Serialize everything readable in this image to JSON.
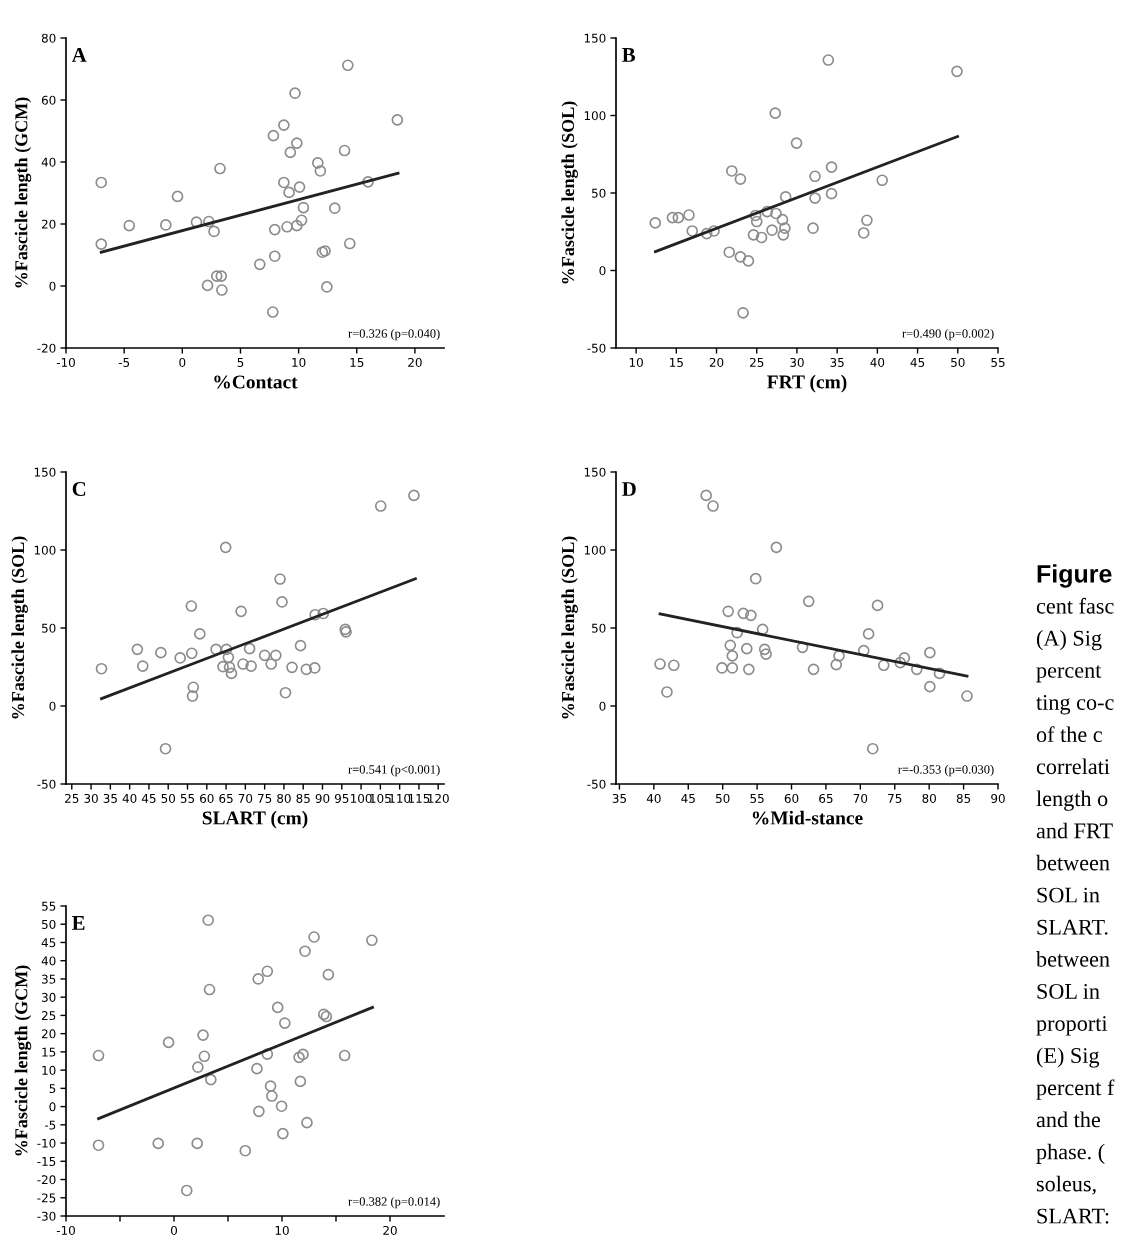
{
  "chart_data": [
    {
      "type": "scatter",
      "xlabel": "%Contact",
      "ylabel": "%Fascicle length (GCM)",
      "xlim": [
        -10,
        22.5
      ],
      "xticks": [
        -10,
        -5,
        0,
        5,
        10,
        15,
        20
      ],
      "ylim": [
        -20,
        80
      ],
      "yticks": [
        -20,
        0,
        20,
        40,
        60,
        80
      ],
      "grid": false,
      "annotations": [
        "A",
        "r=0.326 (p=0.040)"
      ],
      "series": [
        {
          "type": "scatter",
          "marker": "circle",
          "color": "#8c8c8c",
          "x": [
            -6.97,
            -6.97,
            -4.56,
            -1.42,
            -0.41,
            1.22,
            2.28,
            2.73,
            3.24,
            2.17,
            2.96,
            3.35,
            3.4,
            6.66,
            7.78,
            7.83,
            7.95,
            7.95,
            8.73,
            8.73,
            9.18,
            9.01,
            9.29,
            9.69,
            9.85,
            9.85,
            10.08,
            10.25,
            10.41,
            11.65,
            11.87,
            12.04,
            12.27,
            12.43,
            13.11,
            13.95,
            14.23,
            14.4,
            15.97,
            18.49
          ],
          "values": [
            33.4,
            13.5,
            19.5,
            19.7,
            28.9,
            20.6,
            20.8,
            17.6,
            37.9,
            0.2,
            3.2,
            3.2,
            -1.3,
            7.0,
            -8.4,
            48.5,
            18.2,
            9.6,
            51.9,
            33.4,
            30.2,
            19.1,
            43.1,
            62.2,
            46.1,
            19.5,
            31.9,
            21.2,
            25.3,
            39.7,
            37.1,
            10.9,
            11.3,
            -0.3,
            25.1,
            43.7,
            71.2,
            13.7,
            33.6,
            53.6
          ]
        },
        {
          "type": "line",
          "color": "#222222",
          "x": [
            -6.97,
            18.55
          ],
          "values": [
            10.9,
            36.4
          ]
        }
      ]
    },
    {
      "type": "scatter",
      "xlabel": "FRT (cm)",
      "ylabel": "%Fascicle length (SOL)",
      "xlim": [
        7.5,
        55
      ],
      "xticks": [
        10,
        15,
        20,
        25,
        30,
        35,
        40,
        45,
        50,
        55
      ],
      "ylim": [
        -50,
        150
      ],
      "yticks": [
        -50,
        0,
        50,
        100,
        150
      ],
      "grid": false,
      "annotations": [
        "B",
        "r=0.490 (p=0.002)"
      ],
      "series": [
        {
          "type": "scatter",
          "marker": "circle",
          "color": "#8c8c8c",
          "x": [
            12.38,
            14.52,
            15.25,
            16.57,
            16.98,
            18.78,
            19.69,
            21.58,
            21.9,
            22.97,
            22.97,
            23.96,
            23.3,
            24.6,
            24.86,
            25.0,
            25.6,
            26.3,
            26.9,
            27.3,
            27.4,
            28.2,
            28.3,
            28.5,
            28.6,
            29.95,
            32.0,
            32.25,
            32.25,
            33.9,
            34.3,
            34.3,
            38.3,
            38.7,
            40.6,
            49.9
          ],
          "values": [
            30.7,
            34.1,
            34.1,
            35.8,
            25.5,
            23.8,
            25.5,
            11.8,
            64.2,
            59.0,
            8.8,
            6.2,
            -27.3,
            23.0,
            35.5,
            31.6,
            21.3,
            38.0,
            26.0,
            101.5,
            36.8,
            32.8,
            23.0,
            27.3,
            47.5,
            82.2,
            27.3,
            60.8,
            46.7,
            135.8,
            66.7,
            49.6,
            24.2,
            32.4,
            58.2,
            128.5
          ]
        },
        {
          "type": "line",
          "color": "#222222",
          "x": [
            12.4,
            49.98
          ],
          "values": [
            12.2,
            86.5
          ]
        }
      ]
    },
    {
      "type": "scatter",
      "xlabel": "SLART (cm)",
      "ylabel": "%Fascicle length (SOL)",
      "xlim": [
        23.5,
        121.5
      ],
      "xticks": [
        25,
        30,
        35,
        40,
        45,
        50,
        55,
        60,
        65,
        70,
        75,
        80,
        85,
        90,
        95,
        100,
        105,
        110,
        115,
        120
      ],
      "ylim": [
        -50,
        150
      ],
      "yticks": [
        -50,
        0,
        50,
        100,
        150
      ],
      "grid": false,
      "annotations": [
        "C",
        "r=0.541 (p<0.001)"
      ],
      "series": [
        {
          "type": "scatter",
          "marker": "circle",
          "color": "#8c8c8c",
          "x": [
            32.7,
            42.0,
            43.4,
            48.1,
            49.3,
            53.1,
            56.0,
            56.1,
            56.5,
            56.3,
            58.2,
            62.4,
            64.2,
            64.9,
            65.1,
            65.6,
            65.9,
            66.4,
            68.9,
            69.4,
            71.1,
            71.5,
            75.0,
            76.7,
            77.9,
            79.0,
            79.5,
            80.4,
            82.1,
            84.3,
            85.8,
            88.0,
            88.1,
            90.2,
            95.9,
            96.1,
            105.1,
            113.7
          ],
          "values": [
            23.9,
            36.3,
            25.6,
            34.2,
            -27.4,
            30.8,
            64.1,
            33.8,
            12.0,
            6.4,
            46.2,
            36.3,
            25.2,
            101.7,
            36.3,
            31.2,
            24.8,
            20.9,
            60.7,
            26.9,
            36.8,
            25.6,
            32.5,
            26.9,
            32.5,
            81.4,
            66.7,
            8.5,
            24.8,
            38.7,
            23.5,
            24.4,
            58.5,
            59.3,
            49.1,
            47.5,
            128.2,
            135.0
          ]
        },
        {
          "type": "line",
          "color": "#222222",
          "x": [
            32.7,
            114.1
          ],
          "values": [
            4.7,
            81.6
          ]
        }
      ]
    },
    {
      "type": "scatter",
      "xlabel": "%Mid-stance",
      "ylabel": "%Fascicle length (SOL)",
      "xlim": [
        34.5,
        90
      ],
      "xticks": [
        35,
        40,
        45,
        50,
        55,
        60,
        65,
        70,
        75,
        80,
        85,
        90
      ],
      "ylim": [
        -50,
        150
      ],
      "yticks": [
        -50,
        0,
        50,
        100,
        150
      ],
      "grid": false,
      "annotations": [
        "D",
        "r=-0.353 (p=0.030)"
      ],
      "series": [
        {
          "type": "scatter",
          "marker": "circle",
          "color": "#8c8c8c",
          "x": [
            40.9,
            41.9,
            42.9,
            47.6,
            48.6,
            49.9,
            50.8,
            51.1,
            51.4,
            51.4,
            52.1,
            53.0,
            53.5,
            53.8,
            54.1,
            54.8,
            55.8,
            56.1,
            56.3,
            57.8,
            61.6,
            62.5,
            63.2,
            66.5,
            66.9,
            70.5,
            71.2,
            71.8,
            72.5,
            73.4,
            75.8,
            76.4,
            78.2,
            80.1,
            80.1,
            81.5,
            85.5
          ],
          "values": [
            26.9,
            9.0,
            26.1,
            135.0,
            128.2,
            24.4,
            60.7,
            38.9,
            32.1,
            24.4,
            47.0,
            59.4,
            36.8,
            23.5,
            58.1,
            81.6,
            49.1,
            36.3,
            33.3,
            101.7,
            37.6,
            67.1,
            23.5,
            26.5,
            32.1,
            35.5,
            46.2,
            -27.4,
            64.5,
            26.1,
            27.8,
            30.8,
            23.5,
            34.2,
            12.4,
            20.9,
            6.4
          ]
        },
        {
          "type": "line",
          "color": "#222222",
          "x": [
            40.9,
            85.5
          ],
          "values": [
            59.0,
            19.2
          ]
        }
      ]
    },
    {
      "type": "scatter",
      "ylabel": "%Fascicle length (GCM)",
      "xlim": [
        -10,
        25
      ],
      "xticks": [
        -10,
        {
          "value": -5,
          "label": null
        },
        0,
        {
          "value": 5,
          "label": null
        },
        10,
        {
          "value": 15,
          "label": null
        },
        20
      ],
      "ylim": [
        -30,
        55
      ],
      "yticks": [
        -30,
        -25,
        -20,
        -15,
        -10,
        -5,
        0,
        5,
        10,
        15,
        20,
        25,
        30,
        35,
        40,
        45,
        50,
        55
      ],
      "grid": false,
      "annotations": [
        "E",
        "r=0.382 (p=0.014)"
      ],
      "series": [
        {
          "type": "scatter",
          "marker": "circle",
          "color": "#8c8c8c",
          "x": [
            -6.99,
            -6.99,
            -1.46,
            -0.5,
            1.18,
            2.15,
            2.21,
            2.69,
            2.81,
            3.17,
            3.29,
            3.41,
            6.6,
            7.68,
            7.8,
            7.86,
            8.64,
            8.64,
            8.94,
            9.06,
            9.6,
            9.96,
            10.08,
            10.26,
            11.58,
            11.7,
            11.94,
            12.13,
            12.31,
            12.97,
            13.87,
            14.11,
            14.29,
            15.8,
            18.32
          ],
          "values": [
            14.0,
            -10.6,
            -10.1,
            17.6,
            -23.0,
            -10.1,
            10.8,
            19.6,
            13.8,
            51.1,
            32.1,
            7.4,
            -12.1,
            10.4,
            35.0,
            -1.3,
            37.1,
            14.4,
            5.6,
            2.9,
            27.2,
            0.1,
            -7.4,
            22.9,
            13.5,
            6.9,
            14.3,
            42.6,
            -4.4,
            46.5,
            25.3,
            24.7,
            36.2,
            14.0,
            45.6
          ]
        },
        {
          "type": "line",
          "color": "#222222",
          "x": [
            -6.99,
            18.38
          ],
          "values": [
            -3.3,
            27.2
          ]
        }
      ]
    },
    {
      "type": "other",
      "title": "Figure",
      "annotations": [
        "cent fasc",
        "(A) Sig",
        "percent",
        "ting co-c",
        "of the c",
        "correlati",
        "length o",
        "and FRT",
        "between",
        "SOL in",
        "SLART.",
        "between",
        "SOL in",
        "proporti",
        "(E) Sig",
        "percent f",
        "and the",
        "phase. (",
        "soleus,",
        "SLART:"
      ]
    }
  ]
}
